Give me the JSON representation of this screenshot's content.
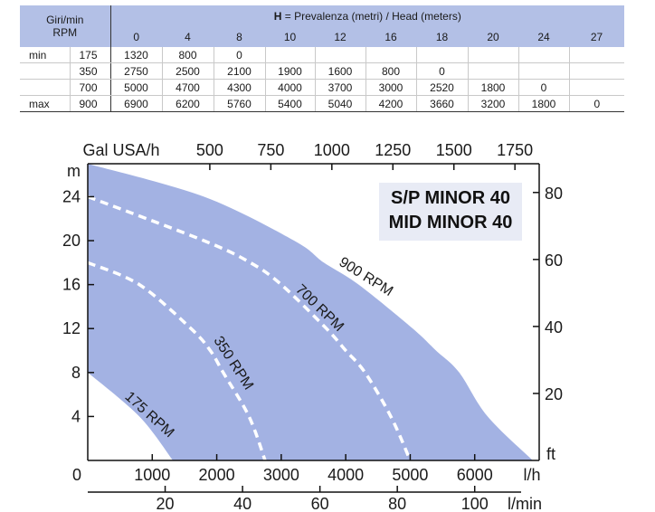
{
  "table": {
    "rpm_header_line1": "Giri/min",
    "rpm_header_line2": "RPM",
    "head_prefix": "H",
    "head_title": " = Prevalenza (metri) / Head (meters)",
    "head_values": [
      "0",
      "4",
      "8",
      "10",
      "12",
      "16",
      "18",
      "20",
      "24",
      "27"
    ],
    "rows": [
      {
        "label": "min",
        "rpm": "175",
        "values": [
          "1320",
          "800",
          "0",
          "",
          "",
          "",
          "",
          "",
          "",
          ""
        ]
      },
      {
        "label": "",
        "rpm": "350",
        "values": [
          "2750",
          "2500",
          "2100",
          "1900",
          "1600",
          "800",
          "0",
          "",
          "",
          ""
        ]
      },
      {
        "label": "",
        "rpm": "700",
        "values": [
          "5000",
          "4700",
          "4300",
          "4000",
          "3700",
          "3000",
          "2520",
          "1800",
          "0",
          ""
        ]
      },
      {
        "label": "max",
        "rpm": "900",
        "values": [
          "6900",
          "6200",
          "5760",
          "5400",
          "5040",
          "4200",
          "3660",
          "3200",
          "1800",
          "0"
        ]
      }
    ]
  },
  "model": {
    "line1": "S/P MINOR 40",
    "line2": "MID MINOR 40"
  },
  "chart_data": {
    "type": "line",
    "xlabel": "l/h",
    "ylabel": "m",
    "xlim": [
      0,
      7000
    ],
    "ylim": [
      0,
      27
    ],
    "x_ticks": [
      "0",
      "1000",
      "2000",
      "3000",
      "4000",
      "5000",
      "6000"
    ],
    "y_ticks": [
      "4",
      "8",
      "12",
      "16",
      "20",
      "24"
    ],
    "top_axis": {
      "label": "Gal USA/h",
      "ticks": [
        "500",
        "750",
        "1000",
        "1250",
        "1500",
        "1750"
      ],
      "values": [
        500,
        750,
        1000,
        1250,
        1500,
        1750
      ]
    },
    "right_axis": {
      "label": "ft",
      "ticks": [
        "20",
        "40",
        "60",
        "80"
      ],
      "values": [
        20,
        40,
        60,
        80
      ]
    },
    "bottom_axis": {
      "label": "l/min",
      "ticks": [
        "20",
        "40",
        "60",
        "80",
        "100"
      ],
      "values": [
        20,
        40,
        60,
        80,
        100
      ]
    },
    "series": [
      {
        "name": "175 RPM",
        "x": [
          0,
          800,
          1320
        ],
        "y": [
          8,
          4,
          0
        ]
      },
      {
        "name": "350 RPM",
        "x": [
          0,
          800,
          1600,
          1900,
          2100,
          2500,
          2750
        ],
        "y": [
          18,
          16,
          12,
          10,
          8,
          4,
          0
        ]
      },
      {
        "name": "700 RPM",
        "x": [
          0,
          1800,
          2520,
          3000,
          3700,
          4000,
          4300,
          4700,
          5000
        ],
        "y": [
          24,
          20,
          18,
          16,
          12,
          10,
          8,
          4,
          0
        ]
      },
      {
        "name": "900 RPM",
        "x": [
          0,
          1800,
          3200,
          3660,
          4200,
          5040,
          5400,
          5760,
          6200,
          6900
        ],
        "y": [
          27,
          24,
          20,
          18,
          16,
          12,
          10,
          8,
          4,
          0
        ]
      }
    ],
    "colors": {
      "fill": "#a3b2e3",
      "dashed_line": "#ffffff",
      "text": "#1a1a1a"
    }
  }
}
